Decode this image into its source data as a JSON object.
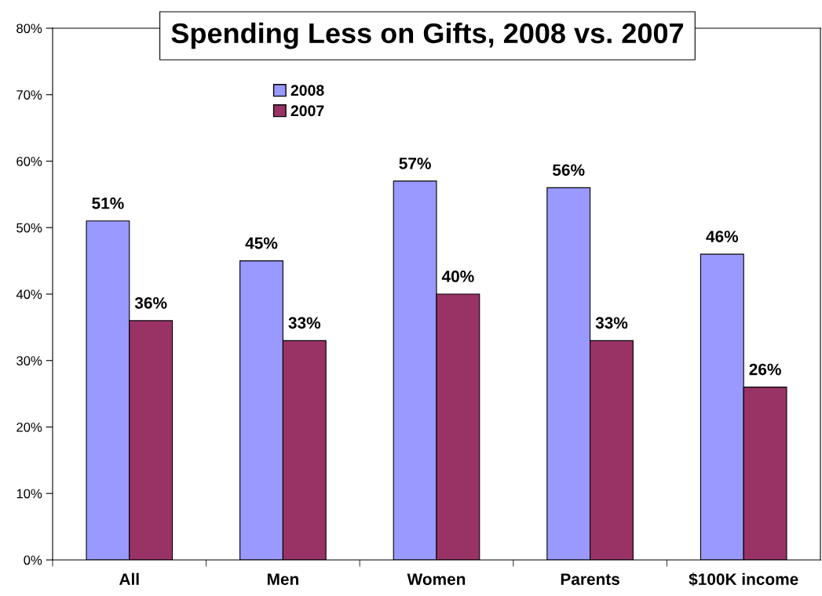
{
  "chart_data": {
    "type": "bar",
    "title": "Spending Less on Gifts, 2008 vs. 2007",
    "categories": [
      "All",
      "Men",
      "Women",
      "Parents",
      "$100K income"
    ],
    "series": [
      {
        "name": "2008",
        "color": "#9999ff",
        "values": [
          51,
          45,
          57,
          56,
          46
        ],
        "value_labels": [
          "51%",
          "45%",
          "57%",
          "56%",
          "46%"
        ]
      },
      {
        "name": "2007",
        "color": "#993366",
        "values": [
          36,
          33,
          40,
          33,
          26
        ],
        "value_labels": [
          "36%",
          "33%",
          "40%",
          "33%",
          "26%"
        ]
      }
    ],
    "ylim": [
      0,
      80
    ],
    "yticks": [
      {
        "value": 0,
        "label": "0%"
      },
      {
        "value": 10,
        "label": "10%"
      },
      {
        "value": 20,
        "label": "20%"
      },
      {
        "value": 30,
        "label": "30%"
      },
      {
        "value": 40,
        "label": "40%"
      },
      {
        "value": 50,
        "label": "50%"
      },
      {
        "value": 60,
        "label": "60%"
      },
      {
        "value": 70,
        "label": "70%"
      },
      {
        "value": 80,
        "label": "80%"
      }
    ],
    "grid": false,
    "legend": "top left"
  }
}
